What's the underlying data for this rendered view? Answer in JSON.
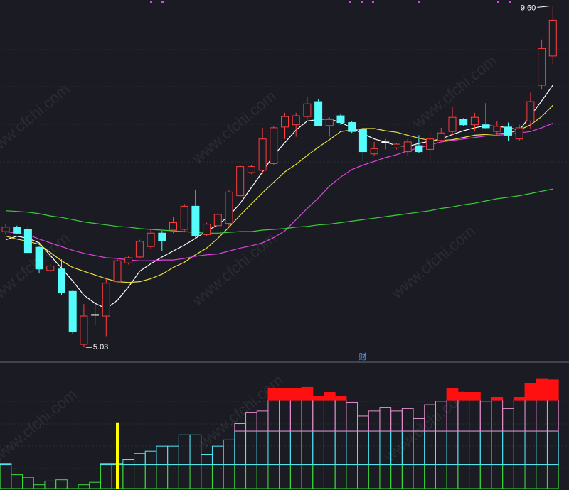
{
  "watermark": "www.cfchi.com",
  "chart_data": [
    {
      "type": "candlestick",
      "ylim": [
        4.88,
        9.68
      ],
      "up_color": "#ff3c3c",
      "down_color": "#54fcfc",
      "flat_color": "#ffffff",
      "open": [
        6.58,
        6.64,
        6.61,
        6.37,
        6.06,
        6.08,
        5.78,
        5.07,
        5.47,
        5.45,
        5.91,
        6.16,
        6.24,
        6.38,
        6.56,
        6.6,
        6.61,
        6.92,
        6.54,
        6.66,
        6.69,
        7.06,
        7.37,
        7.4,
        7.49,
        7.98,
        8.01,
        8.12,
        8.32,
        8.0,
        8.13,
        8.04,
        7.95,
        7.62,
        7.78,
        7.7,
        7.65,
        7.73,
        7.68,
        7.8,
        7.92,
        8.08,
        8.01,
        8.01,
        7.92,
        7.98,
        7.82,
        8.06,
        8.54,
        8.93
      ],
      "high": [
        6.68,
        6.66,
        6.66,
        6.38,
        6.14,
        6.21,
        5.79,
        5.61,
        5.61,
        5.95,
        6.21,
        6.25,
        6.47,
        6.62,
        6.59,
        6.78,
        6.95,
        7.14,
        6.7,
        6.83,
        7.13,
        7.47,
        7.47,
        7.97,
        7.99,
        8.17,
        8.17,
        8.39,
        8.35,
        8.11,
        8.16,
        8.06,
        7.97,
        7.78,
        7.82,
        7.77,
        7.82,
        7.87,
        7.92,
        7.97,
        8.25,
        8.1,
        8.17,
        8.3,
        8.06,
        8.04,
        8.01,
        8.44,
        9.15,
        9.6
      ],
      "low": [
        6.54,
        6.55,
        6.29,
        6.02,
        6.04,
        5.73,
        5.21,
        5.03,
        5.33,
        5.18,
        5.89,
        6.14,
        6.22,
        6.35,
        6.32,
        6.56,
        6.57,
        6.49,
        6.52,
        6.64,
        6.65,
        7.04,
        7.35,
        7.35,
        7.47,
        7.82,
        7.85,
        8.08,
        7.99,
        7.85,
        8.01,
        7.9,
        7.52,
        7.6,
        7.68,
        7.68,
        7.6,
        7.63,
        7.54,
        7.78,
        7.87,
        7.99,
        7.92,
        7.95,
        7.87,
        7.79,
        7.79,
        7.95,
        8.49,
        8.82
      ],
      "close": [
        6.64,
        6.56,
        6.3,
        6.08,
        6.12,
        5.76,
        5.24,
        5.45,
        5.47,
        5.89,
        6.19,
        6.23,
        6.45,
        6.56,
        6.46,
        6.7,
        6.92,
        6.52,
        6.68,
        6.81,
        7.11,
        7.45,
        7.45,
        7.82,
        7.97,
        8.12,
        8.13,
        8.29,
        8.0,
        8.08,
        8.04,
        7.92,
        7.65,
        7.69,
        7.78,
        7.75,
        7.78,
        7.65,
        7.82,
        7.9,
        8.11,
        8.01,
        8.11,
        7.97,
        7.99,
        7.87,
        7.97,
        8.32,
        9.03,
        9.41
      ],
      "max_label": "9.60",
      "min_label": "5.03",
      "series": [
        {
          "color": "#ffffff",
          "values": [
            6.47,
            6.52,
            6.49,
            6.43,
            6.26,
            6.09,
            5.92,
            5.73,
            5.62,
            5.55,
            5.66,
            5.84,
            6.05,
            6.15,
            6.24,
            6.32,
            6.4,
            6.49,
            6.59,
            6.67,
            6.79,
            6.96,
            7.17,
            7.38,
            7.6,
            7.77,
            7.94,
            8.06,
            8.08,
            8.09,
            8.04,
            7.97,
            7.89,
            7.82,
            7.78,
            7.73,
            7.72,
            7.76,
            7.79,
            7.82,
            7.88,
            7.93,
            7.97,
            8.0,
            7.99,
            7.97,
            7.94,
            8.13,
            8.33,
            8.54
          ]
        },
        {
          "color": "#e8e040",
          "values": [
            6.52,
            6.48,
            6.45,
            6.41,
            6.3,
            6.19,
            6.1,
            6.05,
            6.0,
            5.95,
            5.91,
            5.9,
            5.91,
            5.95,
            6.01,
            6.1,
            6.17,
            6.27,
            6.36,
            6.49,
            6.64,
            6.8,
            6.95,
            7.1,
            7.24,
            7.38,
            7.48,
            7.6,
            7.71,
            7.81,
            7.92,
            7.94,
            7.96,
            7.96,
            7.93,
            7.91,
            7.87,
            7.83,
            7.8,
            7.8,
            7.81,
            7.84,
            7.87,
            7.88,
            7.89,
            7.9,
            7.94,
            8.01,
            8.12,
            8.27
          ]
        },
        {
          "color": "#e040e0",
          "values": [
            6.58,
            6.56,
            6.54,
            6.48,
            6.43,
            6.38,
            6.33,
            6.29,
            6.26,
            6.23,
            6.22,
            6.2,
            6.19,
            6.19,
            6.2,
            6.2,
            6.22,
            6.25,
            6.27,
            6.28,
            6.32,
            6.36,
            6.39,
            6.43,
            6.5,
            6.59,
            6.74,
            6.89,
            7.03,
            7.19,
            7.31,
            7.41,
            7.47,
            7.52,
            7.57,
            7.61,
            7.66,
            7.7,
            7.74,
            7.78,
            7.8,
            7.82,
            7.84,
            7.86,
            7.87,
            7.88,
            7.9,
            7.92,
            7.97,
            8.03
          ]
        },
        {
          "color": "#3ccc3c",
          "values": [
            6.86,
            6.85,
            6.84,
            6.82,
            6.79,
            6.77,
            6.74,
            6.71,
            6.69,
            6.67,
            6.65,
            6.64,
            6.62,
            6.61,
            6.6,
            6.59,
            6.58,
            6.57,
            6.56,
            6.56,
            6.57,
            6.58,
            6.58,
            6.6,
            6.61,
            6.62,
            6.64,
            6.65,
            6.67,
            6.68,
            6.7,
            6.72,
            6.74,
            6.76,
            6.78,
            6.8,
            6.82,
            6.84,
            6.86,
            6.89,
            6.91,
            6.94,
            6.96,
            6.99,
            7.02,
            7.04,
            7.06,
            7.09,
            7.12,
            7.15
          ]
        }
      ]
    },
    {
      "type": "banded_bar",
      "title": "财",
      "ylim": [
        0,
        100
      ],
      "levels": [
        19,
        46,
        71
      ],
      "level_colors": [
        "#3cdc3c",
        "#54e4f4",
        "#e890d0",
        "#ff1010"
      ],
      "values": [
        20,
        11,
        9,
        3,
        6,
        7,
        2,
        3,
        5,
        20,
        20,
        23,
        28,
        30,
        34,
        34,
        43,
        43,
        27,
        34,
        39,
        52,
        61,
        62,
        80,
        80,
        80,
        81,
        74,
        77,
        74,
        69,
        58,
        62,
        65,
        62,
        64,
        56,
        67,
        70,
        80,
        77,
        77,
        70,
        73,
        64,
        73,
        84,
        88,
        87
      ],
      "signal": {
        "color": "#ffff00",
        "values": [
          null,
          null,
          null,
          null,
          null,
          null,
          null,
          null,
          null,
          null,
          53,
          null,
          null,
          null,
          null,
          null,
          null,
          null,
          null,
          null,
          null,
          null,
          null,
          null,
          null,
          null,
          null,
          null,
          null,
          null,
          null,
          null,
          null,
          null,
          null,
          null,
          null,
          null,
          null,
          null,
          null,
          null,
          null,
          null,
          null,
          null,
          null,
          null,
          null,
          null
        ]
      }
    }
  ]
}
